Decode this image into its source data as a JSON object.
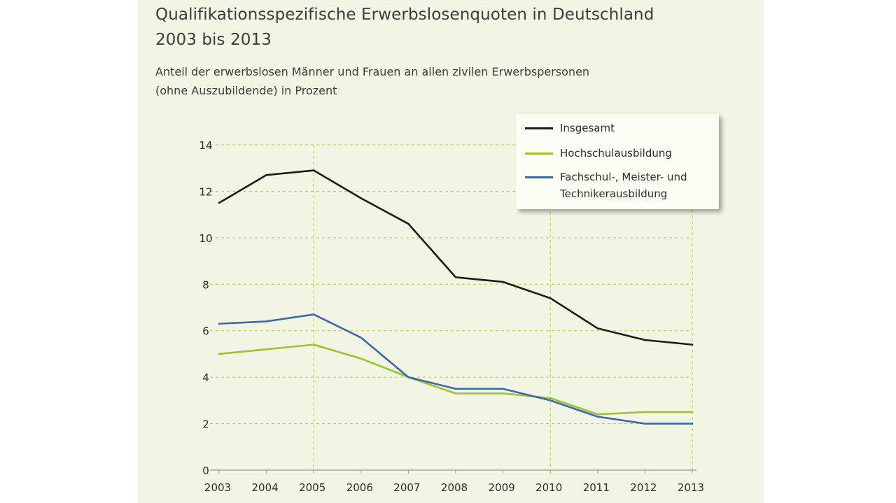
{
  "header": {
    "title_line1": "Qualifikationsspezifische Erwerbslosenquoten in Deutschland",
    "title_line2": "2003 bis 2013",
    "subtitle_line1": "Anteil der erwerbslosen Männer und Frauen an allen zivilen Erwerbspersonen",
    "subtitle_line2": "(ohne Auszubildende) in Prozent"
  },
  "colors": {
    "background": "#f2f4e4",
    "grid": "#b5cf3c",
    "axis": "#9a9a9a",
    "insgesamt": "#1c1c1c",
    "hochschul": "#9cc232",
    "fachschul": "#3b68ad"
  },
  "chart_data": {
    "type": "line",
    "title": "Qualifikationsspezifische Erwerbslosenquoten in Deutschland 2003 bis 2013",
    "subtitle": "Anteil der erwerbslosen Männer und Frauen an allen zivilen Erwerbspersonen (ohne Auszubildende) in Prozent",
    "x": [
      "2003",
      "2004",
      "2005",
      "2006",
      "2007",
      "2008",
      "2009",
      "2010",
      "2011",
      "2012",
      "2013"
    ],
    "ylim": [
      0,
      14
    ],
    "yticks": [
      "0",
      "2",
      "4",
      "6",
      "8",
      "10",
      "12",
      "14"
    ],
    "grid": "dashed",
    "legend_position": "top-right",
    "series": [
      {
        "name": "Insgesamt",
        "color": "#1c1c1c",
        "values": [
          11.5,
          12.7,
          12.9,
          11.7,
          10.6,
          8.3,
          8.1,
          7.4,
          6.1,
          5.6,
          5.4
        ]
      },
      {
        "name": "Hochschulausbildung",
        "color": "#9cc232",
        "values": [
          5.0,
          5.2,
          5.4,
          4.8,
          4.0,
          3.3,
          3.3,
          3.1,
          2.4,
          2.5,
          2.5
        ]
      },
      {
        "name": "Fachschul-, Meister- und Technikerausbildung",
        "name_line1": "Fachschul-, Meister- und",
        "name_line2": "Technikerausbildung",
        "color": "#3b68ad",
        "values": [
          6.3,
          6.4,
          6.7,
          5.7,
          4.0,
          3.5,
          3.5,
          3.0,
          2.3,
          2.0,
          2.0
        ]
      }
    ]
  }
}
